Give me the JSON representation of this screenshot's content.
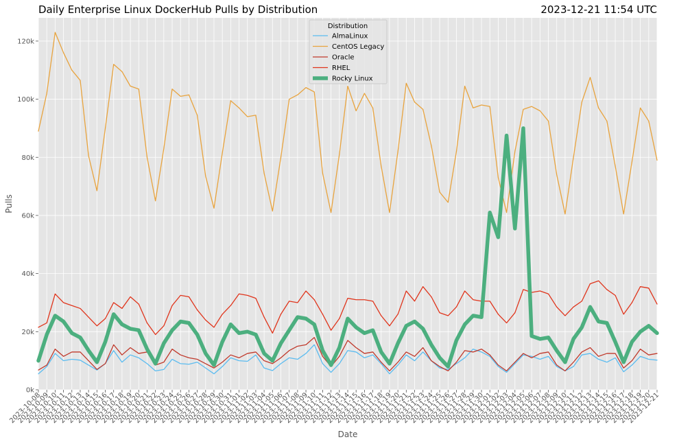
{
  "chart_data": {
    "type": "line",
    "title": "Daily Enterprise Linux DockerHub Pulls by Distribution",
    "timestamp": "2023-12-21 11:54 UTC",
    "xlabel": "Date",
    "ylabel": "Pulls",
    "ylim": [
      0,
      128000
    ],
    "yticks": [
      0,
      20000,
      40000,
      60000,
      80000,
      100000,
      120000
    ],
    "ytick_labels": [
      "0k",
      "20k",
      "40k",
      "60k",
      "80k",
      "100k",
      "120k"
    ],
    "grid": true,
    "legend": {
      "title": "Distribution",
      "placement": "top-center"
    },
    "x": [
      "2023-10-08",
      "2023-10-09",
      "2023-10-10",
      "2023-10-11",
      "2023-10-12",
      "2023-10-13",
      "2023-10-14",
      "2023-10-15",
      "2023-10-16",
      "2023-10-17",
      "2023-10-18",
      "2023-10-19",
      "2023-10-20",
      "2023-10-21",
      "2023-10-22",
      "2023-10-23",
      "2023-10-24",
      "2023-10-25",
      "2023-10-26",
      "2023-10-27",
      "2023-10-28",
      "2023-10-29",
      "2023-10-30",
      "2023-10-31",
      "2023-11-01",
      "2023-11-02",
      "2023-11-03",
      "2023-11-04",
      "2023-11-05",
      "2023-11-06",
      "2023-11-07",
      "2023-11-08",
      "2023-11-09",
      "2023-11-10",
      "2023-11-11",
      "2023-11-12",
      "2023-11-13",
      "2023-11-14",
      "2023-11-15",
      "2023-11-16",
      "2023-11-17",
      "2023-11-18",
      "2023-11-19",
      "2023-11-20",
      "2023-11-21",
      "2023-11-22",
      "2023-11-23",
      "2023-11-24",
      "2023-11-25",
      "2023-11-26",
      "2023-11-27",
      "2023-11-28",
      "2023-11-29",
      "2023-11-30",
      "2023-12-01",
      "2023-12-02",
      "2023-12-03",
      "2023-12-04",
      "2023-12-05",
      "2023-12-06",
      "2023-12-07",
      "2023-12-08",
      "2023-12-09",
      "2023-12-10",
      "2023-12-11",
      "2023-12-12",
      "2023-12-13",
      "2023-12-14",
      "2023-12-15",
      "2023-12-16",
      "2023-12-17",
      "2023-12-18",
      "2023-12-19",
      "2023-12-20",
      "2023-12-21"
    ],
    "series": [
      {
        "name": "AlmaLinux",
        "color": "#5bbcf0",
        "width": 1.3,
        "values": [
          5500,
          8000,
          12500,
          10000,
          10500,
          10200,
          8500,
          6800,
          9000,
          13500,
          9500,
          12000,
          11000,
          9000,
          6500,
          7000,
          10500,
          9000,
          8800,
          9500,
          7500,
          5500,
          8000,
          11000,
          10000,
          9800,
          12000,
          7500,
          6600,
          9000,
          11000,
          10500,
          12500,
          15500,
          9000,
          6000,
          9000,
          13500,
          13000,
          11000,
          12000,
          9000,
          5500,
          8500,
          12000,
          10000,
          13000,
          10000,
          7500,
          7000,
          9000,
          11000,
          14000,
          13000,
          11500,
          8000,
          6000,
          9000,
          12000,
          11500,
          10500,
          11500,
          8000,
          6500,
          8000,
          12000,
          12500,
          10500,
          9500,
          11000,
          6200,
          8500,
          11500,
          10500,
          10200
        ]
      },
      {
        "name": "CentOS Legacy",
        "color": "#e8a33d",
        "width": 1.3,
        "values": [
          89000,
          102000,
          123000,
          116000,
          110000,
          106500,
          80500,
          68500,
          90000,
          112000,
          109500,
          104500,
          103500,
          80000,
          65000,
          83000,
          103500,
          101000,
          101500,
          94500,
          73500,
          62500,
          81500,
          99500,
          97000,
          94000,
          94500,
          74500,
          61500,
          80000,
          100000,
          101500,
          104000,
          102500,
          74500,
          61000,
          81000,
          104500,
          96000,
          102000,
          97000,
          77000,
          61000,
          82000,
          105500,
          99000,
          96500,
          84000,
          68000,
          64500,
          82000,
          104500,
          97000,
          98000,
          97500,
          73000,
          61000,
          82000,
          96500,
          97500,
          96000,
          92500,
          74000,
          60500,
          80000,
          99000,
          107500,
          97000,
          92500,
          77000,
          60500,
          78500,
          97000,
          92500,
          79000
        ]
      },
      {
        "name": "Oracle",
        "color": "#c0392b",
        "width": 1.3,
        "values": [
          6800,
          8500,
          14000,
          11500,
          13000,
          13000,
          10000,
          7000,
          9000,
          15500,
          12000,
          14500,
          12500,
          13000,
          8500,
          9500,
          14000,
          12000,
          11000,
          10500,
          9000,
          7500,
          9500,
          12000,
          11000,
          12500,
          13000,
          10000,
          9000,
          11000,
          13500,
          15000,
          15500,
          18000,
          11500,
          8000,
          11500,
          17000,
          14500,
          12500,
          13000,
          9500,
          6500,
          9500,
          13000,
          11500,
          14500,
          10000,
          8000,
          6500,
          9500,
          13500,
          13000,
          14000,
          12000,
          8500,
          6500,
          9500,
          12500,
          11000,
          12500,
          13000,
          8500,
          6500,
          9500,
          13000,
          14500,
          11500,
          12500,
          12500,
          7500,
          10000,
          14000,
          12000,
          12500
        ]
      },
      {
        "name": "RHEL",
        "color": "#e0341b",
        "width": 1.3,
        "values": [
          21500,
          23000,
          33000,
          30000,
          29000,
          28000,
          25000,
          22000,
          24500,
          30000,
          28000,
          32000,
          29500,
          23000,
          19000,
          22000,
          29000,
          32500,
          32000,
          27500,
          24000,
          21500,
          26000,
          29000,
          33000,
          32500,
          31500,
          25000,
          19500,
          26000,
          30500,
          30000,
          34000,
          31000,
          26000,
          20500,
          24500,
          31500,
          31000,
          31000,
          30500,
          25500,
          22000,
          26000,
          34000,
          30500,
          35500,
          32000,
          26500,
          25500,
          28500,
          34000,
          31000,
          30500,
          30500,
          26000,
          23000,
          26500,
          34500,
          33500,
          34000,
          33000,
          28500,
          25500,
          28500,
          30500,
          36500,
          37500,
          34500,
          32500,
          26000,
          30000,
          35500,
          35000,
          29500
        ]
      },
      {
        "name": "Rocky Linux",
        "color": "#4caf7f",
        "width": 5.5,
        "values": [
          10000,
          19000,
          25500,
          23500,
          19500,
          18000,
          13500,
          9500,
          16500,
          26000,
          22500,
          21000,
          20500,
          14000,
          9000,
          16000,
          20500,
          23500,
          23000,
          19000,
          12500,
          8500,
          16500,
          22500,
          19500,
          20000,
          19000,
          12500,
          10000,
          16000,
          20500,
          25000,
          24500,
          22500,
          13500,
          8500,
          14500,
          24500,
          21500,
          19500,
          20500,
          13000,
          9000,
          16000,
          22000,
          23500,
          21000,
          15500,
          11000,
          8000,
          17000,
          22500,
          25500,
          25000,
          61000,
          52500,
          87500,
          55500,
          90000,
          18500,
          17500,
          18000,
          13500,
          9500,
          17500,
          21500,
          28500,
          23500,
          23000,
          16500,
          9500,
          16500,
          20000,
          22000,
          19500
        ]
      }
    ]
  }
}
